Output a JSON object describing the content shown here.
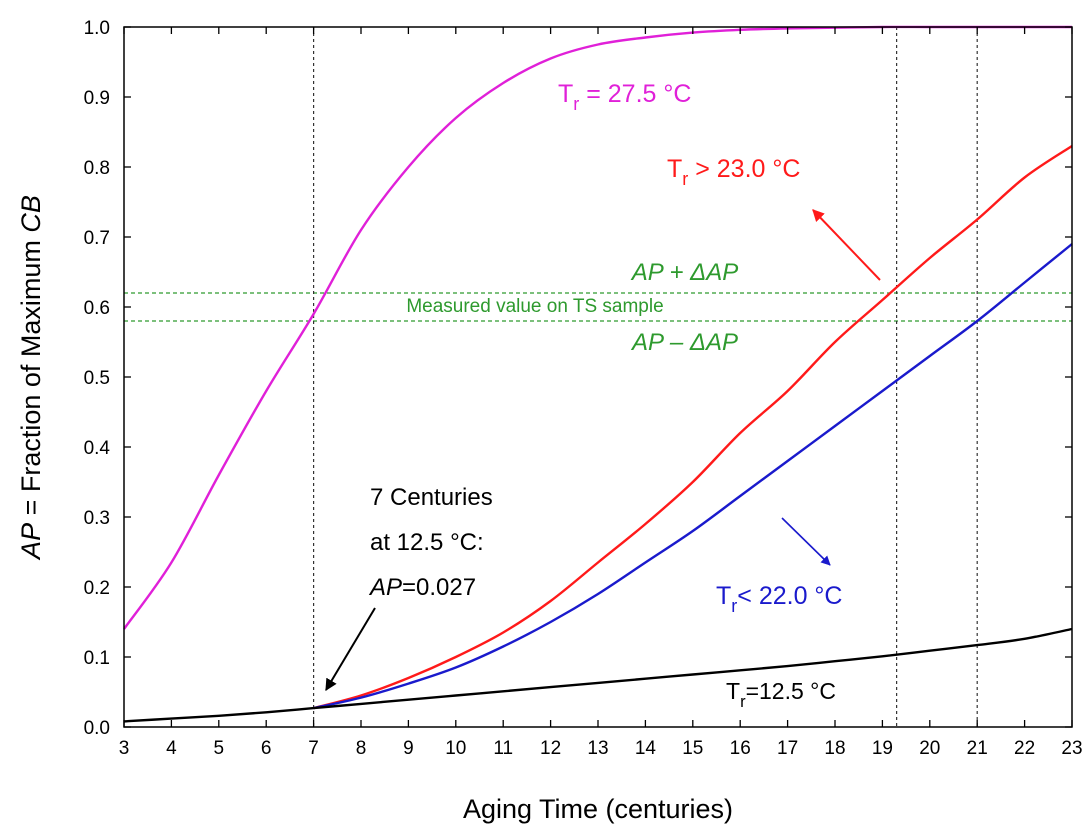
{
  "chart_data": {
    "type": "line",
    "xlabel": "Aging Time (centuries)",
    "ylabel_parts": [
      "AP",
      " = Fraction of Maximum ",
      "CB"
    ],
    "xlim": [
      3,
      23
    ],
    "ylim": [
      0.0,
      1.0
    ],
    "x_ticks": [
      "3",
      "4",
      "5",
      "6",
      "7",
      "8",
      "9",
      "10",
      "11",
      "12",
      "13",
      "14",
      "15",
      "16",
      "17",
      "18",
      "19",
      "20",
      "21",
      "22",
      "23"
    ],
    "y_ticks": [
      "0.0",
      "0.1",
      "0.2",
      "0.3",
      "0.4",
      "0.5",
      "0.6",
      "0.7",
      "0.8",
      "0.9",
      "1.0"
    ],
    "grid": false,
    "series": [
      {
        "label_main": "T",
        "label_sub": "r",
        "label_rest": " = 27.5 °C",
        "color": "#e020d8",
        "x": [
          3,
          4,
          5,
          6,
          7,
          8,
          9,
          10,
          11,
          12,
          13,
          14,
          15,
          16,
          17,
          18,
          19,
          20,
          21,
          22,
          23
        ],
        "y": [
          0.14,
          0.235,
          0.36,
          0.48,
          0.59,
          0.71,
          0.8,
          0.87,
          0.92,
          0.955,
          0.975,
          0.985,
          0.992,
          0.996,
          0.998,
          0.999,
          1.0,
          1.0,
          1.0,
          1.0,
          1.0
        ]
      },
      {
        "label_main": "T",
        "label_sub": "r",
        "label_rest": " > 23.0 °C",
        "color": "#ff1a1a",
        "x": [
          7,
          8,
          9,
          10,
          11,
          12,
          13,
          14,
          15,
          16,
          17,
          18,
          19,
          20,
          21,
          22,
          23
        ],
        "y": [
          0.027,
          0.045,
          0.07,
          0.1,
          0.135,
          0.18,
          0.235,
          0.29,
          0.35,
          0.42,
          0.48,
          0.55,
          0.61,
          0.67,
          0.725,
          0.785,
          0.83
        ]
      },
      {
        "label_main": "T",
        "label_sub": "r",
        "label_rest": "< 22.0 °C",
        "color": "#1a1acc",
        "x": [
          7,
          8,
          9,
          10,
          11,
          12,
          13,
          14,
          15,
          16,
          17,
          18,
          19,
          20,
          21,
          22,
          23
        ],
        "y": [
          0.027,
          0.042,
          0.062,
          0.085,
          0.115,
          0.15,
          0.19,
          0.235,
          0.28,
          0.33,
          0.38,
          0.43,
          0.48,
          0.53,
          0.58,
          0.635,
          0.69
        ]
      },
      {
        "label_main": "T",
        "label_sub": "r",
        "label_rest": "=12.5 °C",
        "color": "#000000",
        "x": [
          3,
          4,
          5,
          6,
          7,
          8,
          9,
          10,
          11,
          12,
          13,
          14,
          15,
          16,
          17,
          18,
          19,
          20,
          21,
          22,
          23
        ],
        "y": [
          0.008,
          0.012,
          0.016,
          0.021,
          0.027,
          0.033,
          0.039,
          0.045,
          0.051,
          0.057,
          0.063,
          0.069,
          0.075,
          0.081,
          0.087,
          0.094,
          0.101,
          0.109,
          0.117,
          0.126,
          0.14
        ]
      }
    ],
    "reference_lines": {
      "horizontal": [
        0.62,
        0.58
      ],
      "vertical": [
        7.0,
        19.3,
        21.0
      ]
    },
    "annotations": {
      "ap_plus": "AP + ΔAP",
      "measured": "Measured value on TS sample",
      "ap_minus": "AP – ΔAP",
      "centuries_line1": "7 Centuries",
      "centuries_line2": "at 12.5 °C:",
      "centuries_line3_italic": "AP",
      "centuries_line3_rest": "=0.027",
      "colors": {
        "green": "#2e9a2e",
        "red": "#ff1a1a",
        "blue": "#1a1acc"
      }
    }
  }
}
